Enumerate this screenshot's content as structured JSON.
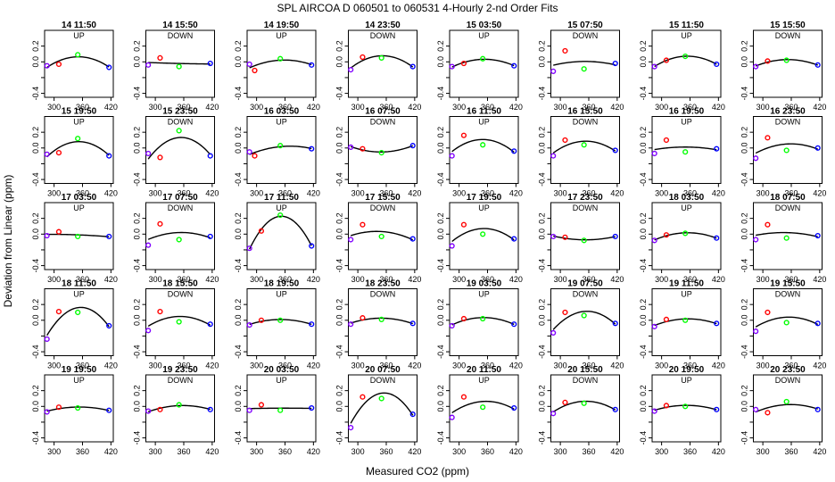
{
  "title": "SPL   AIRCOA D    060501 to 060531   4-Hourly 2-nd Order Fits",
  "xlabel": "Measured CO2 (ppm)",
  "ylabel": "Deviation from Linear (ppm)",
  "colors": {
    "point_low": "#8000ff",
    "point_2": "#ff0000",
    "point_3": "#00ff00",
    "point_high": "#0000ff",
    "curve": "#000000"
  },
  "chart_data": {
    "type": "scatter",
    "xlim": [
      280,
      425
    ],
    "ylim": [
      -0.45,
      0.4
    ],
    "xticks": [
      300,
      360,
      420
    ],
    "yticks": [
      -0.4,
      -0.2,
      0.0,
      0.2
    ],
    "ytick_labels": [
      "-0.4",
      "",
      "0.0",
      "0.2"
    ],
    "series_note": "each panel: 4 calibration standards (x = CO2 ppm, y = deviation ppm) and fitted quadratic",
    "panels": [
      {
        "title": "14 11:50",
        "dir": "UP",
        "x": [
          285,
          310,
          350,
          416
        ],
        "y": [
          -0.05,
          -0.03,
          0.09,
          -0.07
        ]
      },
      {
        "title": "14 15:50",
        "dir": "DOWN",
        "x": [
          285,
          310,
          350,
          416
        ],
        "y": [
          -0.04,
          0.05,
          -0.06,
          -0.02
        ]
      },
      {
        "title": "14 19:50",
        "dir": "UP",
        "x": [
          285,
          296,
          350,
          416
        ],
        "y": [
          -0.03,
          -0.11,
          0.04,
          -0.04
        ]
      },
      {
        "title": "14 23:50",
        "dir": "DOWN",
        "x": [
          285,
          310,
          350,
          416
        ],
        "y": [
          -0.1,
          0.06,
          0.05,
          -0.06
        ]
      },
      {
        "title": "15 03:50",
        "dir": "UP",
        "x": [
          285,
          310,
          350,
          416
        ],
        "y": [
          -0.06,
          -0.02,
          0.04,
          -0.05
        ]
      },
      {
        "title": "15 07:50",
        "dir": "DOWN",
        "x": [
          285,
          310,
          350,
          416
        ],
        "y": [
          -0.12,
          0.14,
          -0.09,
          -0.02
        ]
      },
      {
        "title": "15 11:50",
        "dir": "UP",
        "x": [
          285,
          310,
          350,
          416
        ],
        "y": [
          -0.06,
          0.02,
          0.07,
          -0.03
        ]
      },
      {
        "title": "15 15:50",
        "dir": "DOWN",
        "x": [
          285,
          310,
          350,
          416
        ],
        "y": [
          -0.06,
          0.01,
          0.02,
          -0.04
        ]
      },
      {
        "title": "15 19:50",
        "dir": "UP",
        "x": [
          285,
          310,
          350,
          416
        ],
        "y": [
          -0.08,
          -0.06,
          0.12,
          -0.1
        ]
      },
      {
        "title": "15 23:50",
        "dir": "DOWN",
        "x": [
          285,
          310,
          350,
          416
        ],
        "y": [
          -0.07,
          -0.12,
          0.22,
          -0.1
        ]
      },
      {
        "title": "16 03:50",
        "dir": "UP",
        "x": [
          285,
          296,
          350,
          416
        ],
        "y": [
          -0.05,
          -0.1,
          0.03,
          -0.01
        ]
      },
      {
        "title": "16 07:50",
        "dir": "DOWN",
        "x": [
          285,
          310,
          350,
          416
        ],
        "y": [
          0.01,
          -0.01,
          -0.06,
          0.03
        ]
      },
      {
        "title": "16 11:50",
        "dir": "UP",
        "x": [
          285,
          310,
          350,
          416
        ],
        "y": [
          -0.1,
          0.16,
          0.04,
          -0.04
        ]
      },
      {
        "title": "16 15:50",
        "dir": "DOWN",
        "x": [
          285,
          310,
          350,
          416
        ],
        "y": [
          -0.1,
          0.1,
          0.04,
          -0.03
        ]
      },
      {
        "title": "16 19:50",
        "dir": "UP",
        "x": [
          285,
          310,
          350,
          416
        ],
        "y": [
          -0.07,
          0.1,
          -0.05,
          -0.01
        ]
      },
      {
        "title": "16 23:50",
        "dir": "DOWN",
        "x": [
          285,
          310,
          350,
          416
        ],
        "y": [
          -0.13,
          0.13,
          -0.03,
          0.0
        ]
      },
      {
        "title": "17 03:50",
        "dir": "UP",
        "x": [
          285,
          310,
          350,
          416
        ],
        "y": [
          -0.02,
          0.03,
          -0.03,
          -0.03
        ]
      },
      {
        "title": "17 07:50",
        "dir": "DOWN",
        "x": [
          285,
          310,
          350,
          416
        ],
        "y": [
          -0.14,
          0.13,
          -0.07,
          -0.03
        ]
      },
      {
        "title": "17 11:50",
        "dir": "UP",
        "x": [
          285,
          310,
          350,
          416
        ],
        "y": [
          -0.18,
          0.04,
          0.24,
          -0.15
        ]
      },
      {
        "title": "17 15:50",
        "dir": "DOWN",
        "x": [
          285,
          310,
          350,
          416
        ],
        "y": [
          -0.07,
          0.12,
          -0.03,
          -0.06
        ]
      },
      {
        "title": "17 19:50",
        "dir": "UP",
        "x": [
          285,
          310,
          350,
          416
        ],
        "y": [
          -0.15,
          0.12,
          0.0,
          -0.06
        ]
      },
      {
        "title": "17 23:50",
        "dir": "DOWN",
        "x": [
          285,
          310,
          350,
          416
        ],
        "y": [
          -0.03,
          -0.04,
          -0.08,
          -0.03
        ]
      },
      {
        "title": "18 03:50",
        "dir": "UP",
        "x": [
          285,
          310,
          350,
          416
        ],
        "y": [
          -0.08,
          -0.01,
          0.01,
          -0.05
        ]
      },
      {
        "title": "18 07:50",
        "dir": "DOWN",
        "x": [
          285,
          310,
          350,
          416
        ],
        "y": [
          -0.07,
          0.12,
          -0.05,
          -0.02
        ]
      },
      {
        "title": "18 11:50",
        "dir": "UP",
        "x": [
          285,
          310,
          350,
          416
        ],
        "y": [
          -0.24,
          0.11,
          0.1,
          -0.07
        ]
      },
      {
        "title": "18 15:50",
        "dir": "DOWN",
        "x": [
          285,
          310,
          350,
          416
        ],
        "y": [
          -0.13,
          0.11,
          -0.02,
          -0.05
        ]
      },
      {
        "title": "18 19:50",
        "dir": "UP",
        "x": [
          285,
          310,
          350,
          416
        ],
        "y": [
          -0.06,
          0.0,
          0.0,
          -0.05
        ]
      },
      {
        "title": "18 23:50",
        "dir": "DOWN",
        "x": [
          285,
          310,
          350,
          416
        ],
        "y": [
          -0.05,
          0.03,
          0.01,
          -0.04
        ]
      },
      {
        "title": "19 03:50",
        "dir": "UP",
        "x": [
          285,
          310,
          350,
          416
        ],
        "y": [
          -0.07,
          0.02,
          0.02,
          -0.05
        ]
      },
      {
        "title": "19 07:50",
        "dir": "DOWN",
        "x": [
          285,
          310,
          350,
          416
        ],
        "y": [
          -0.16,
          0.1,
          0.06,
          -0.04
        ]
      },
      {
        "title": "19 11:50",
        "dir": "UP",
        "x": [
          285,
          310,
          350,
          416
        ],
        "y": [
          -0.08,
          0.01,
          0.0,
          -0.04
        ]
      },
      {
        "title": "19 15:50",
        "dir": "DOWN",
        "x": [
          285,
          310,
          350,
          416
        ],
        "y": [
          -0.14,
          0.1,
          -0.03,
          -0.04
        ]
      },
      {
        "title": "19 19:50",
        "dir": "UP",
        "x": [
          285,
          310,
          350,
          416
        ],
        "y": [
          -0.07,
          -0.01,
          -0.02,
          -0.05
        ]
      },
      {
        "title": "19 23:50",
        "dir": "DOWN",
        "x": [
          285,
          310,
          350,
          416
        ],
        "y": [
          -0.06,
          -0.04,
          0.02,
          -0.04
        ]
      },
      {
        "title": "20 03:50",
        "dir": "UP",
        "x": [
          285,
          310,
          350,
          416
        ],
        "y": [
          -0.05,
          0.02,
          -0.05,
          -0.02
        ]
      },
      {
        "title": "20 07:50",
        "dir": "DOWN",
        "x": [
          285,
          310,
          350,
          416
        ],
        "y": [
          -0.27,
          0.12,
          0.1,
          -0.1
        ]
      },
      {
        "title": "20 11:50",
        "dir": "UP",
        "x": [
          285,
          310,
          350,
          416
        ],
        "y": [
          -0.14,
          0.12,
          -0.01,
          -0.02
        ]
      },
      {
        "title": "20 15:50",
        "dir": "DOWN",
        "x": [
          285,
          310,
          350,
          416
        ],
        "y": [
          -0.09,
          0.05,
          0.04,
          -0.04
        ]
      },
      {
        "title": "20 19:50",
        "dir": "UP",
        "x": [
          285,
          310,
          350,
          416
        ],
        "y": [
          -0.06,
          0.01,
          0.0,
          -0.04
        ]
      },
      {
        "title": "20 23:50",
        "dir": "DOWN",
        "x": [
          285,
          310,
          350,
          416
        ],
        "y": [
          -0.04,
          -0.08,
          0.06,
          -0.04
        ]
      }
    ]
  }
}
